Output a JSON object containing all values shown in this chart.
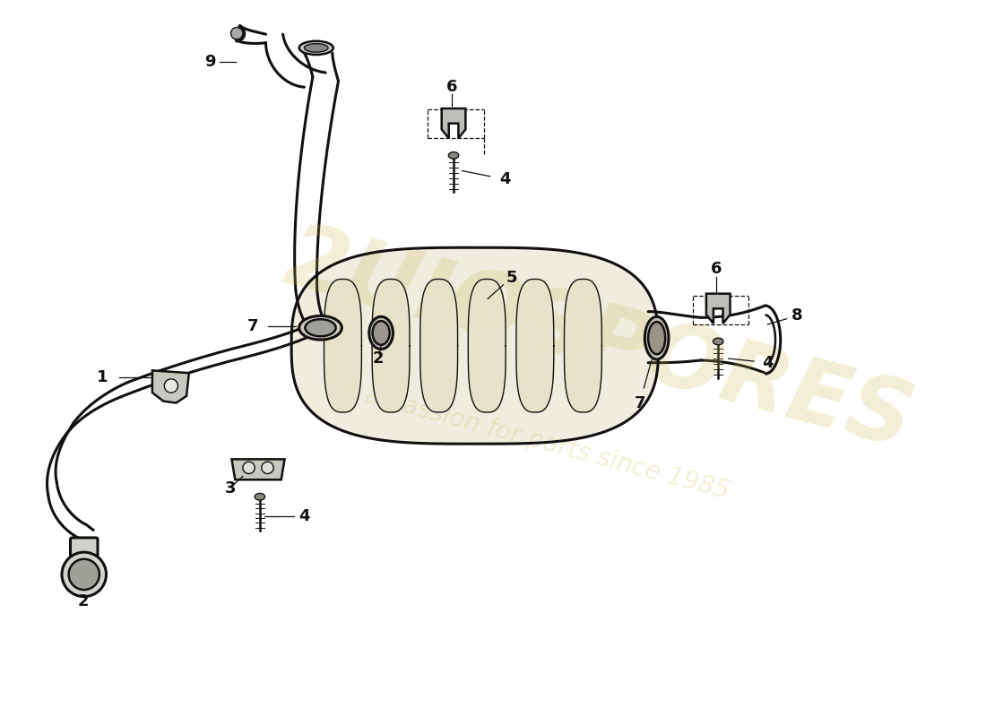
{
  "background_color": "#ffffff",
  "line_color": "#111111",
  "watermark_color": "#c8b84a",
  "figsize": [
    11.0,
    8.0
  ],
  "dpi": 100,
  "lw_main": 1.8,
  "lw_thin": 1.0,
  "lw_thick": 2.2
}
